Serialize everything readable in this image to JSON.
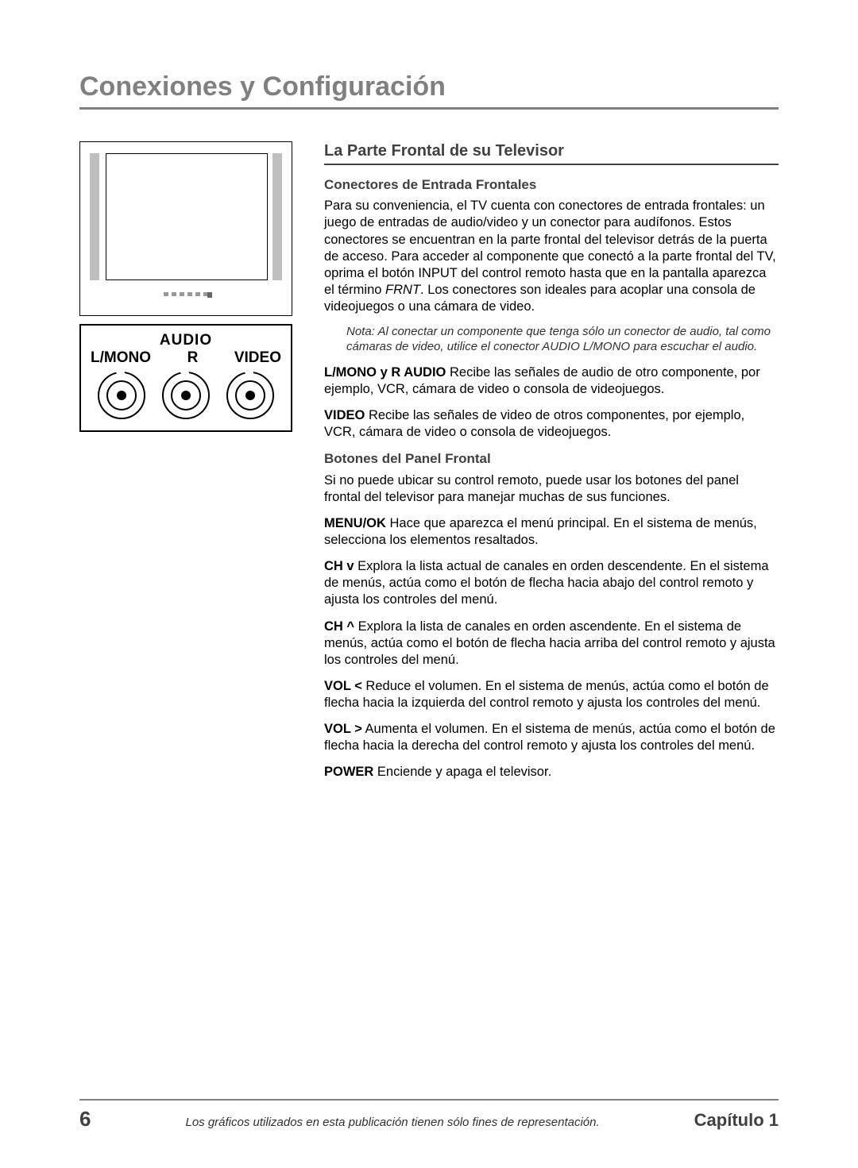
{
  "page": {
    "title": "Conexiones y Configuración",
    "number": "6",
    "footer_note": "Los gráficos utilizados en esta publicación tienen sólo fines de representación.",
    "chapter_label": "Capítulo 1"
  },
  "colors": {
    "title_gray": "#808080",
    "heading_gray": "#404040",
    "text": "#000000",
    "background": "#ffffff",
    "speaker_gray": "#bfbfbf"
  },
  "typography": {
    "title_pt": 34,
    "section_title_pt": 20,
    "subsection_pt": 17,
    "body_pt": 16.5,
    "note_pt": 15,
    "pagenum_pt": 26,
    "chapter_pt": 22
  },
  "diagram": {
    "jack_panel": {
      "top_label": "AUDIO",
      "labels": {
        "left": "L/MONO",
        "center": "R",
        "right": "VIDEO"
      },
      "connector_count": 3
    }
  },
  "section": {
    "title": "La Parte Frontal de su Televisor",
    "sub1_title": "Conectores de Entrada Frontales",
    "sub1_body_a": "Para su conveniencia, el TV cuenta con conectores de entrada frontales: un juego de entradas de audio/video y un conector para audífonos. Estos conectores se encuentran en la parte frontal del televisor detrás de la puerta de acceso. Para acceder al componente que conectó a la parte frontal del TV, oprima el botón INPUT del control remoto hasta que en la pantalla aparezca el término ",
    "sub1_frnt": "FRNT",
    "sub1_body_b": ". Los conectores son ideales para acoplar una consola de videojuegos o una cámara de video.",
    "note": "Nota: Al conectar un componente que tenga sólo un conector de audio, tal como cámaras de video, utilice el conector AUDIO L/MONO para escuchar el audio.",
    "def1_term": "L/MONO y R AUDIO",
    "def1_body": "   Recibe las señales de audio de otro componente, por ejemplo, VCR, cámara de video o consola de videojuegos.",
    "def2_term": "VIDEO",
    "def2_body": "   Recibe las señales de video de otros componentes, por ejemplo, VCR, cámara de video o consola de videojuegos.",
    "sub2_title": "Botones del Panel Frontal",
    "sub2_intro": "Si no puede ubicar su control remoto, puede usar los botones del panel frontal del televisor para manejar muchas de sus funciones.",
    "btn1_term": "MENU/OK",
    "btn1_body": "   Hace que aparezca el menú principal. En el sistema de menús, selecciona los elementos resaltados.",
    "btn2_term": "CH v",
    "btn2_body": "   Explora la lista actual de canales en orden descendente. En el sistema de menús, actúa como el botón de flecha hacia abajo del control remoto y ajusta los controles del menú.",
    "btn3_term": "CH ^",
    "btn3_body": "   Explora la lista de canales en orden ascendente. En el sistema de menús, actúa como el botón de flecha hacia arriba del control remoto y ajusta los controles del menú.",
    "btn4_term": "VOL <",
    "btn4_body": "   Reduce el volumen. En el sistema de menús, actúa como el botón de flecha hacia la izquierda del control remoto y ajusta los controles del menú.",
    "btn5_term": "VOL >",
    "btn5_body": "   Aumenta el volumen. En el sistema de menús, actúa como el botón de flecha hacia la derecha del control remoto y ajusta los controles del menú.",
    "btn6_term": "POWER",
    "btn6_body": "   Enciende y apaga el televisor."
  }
}
